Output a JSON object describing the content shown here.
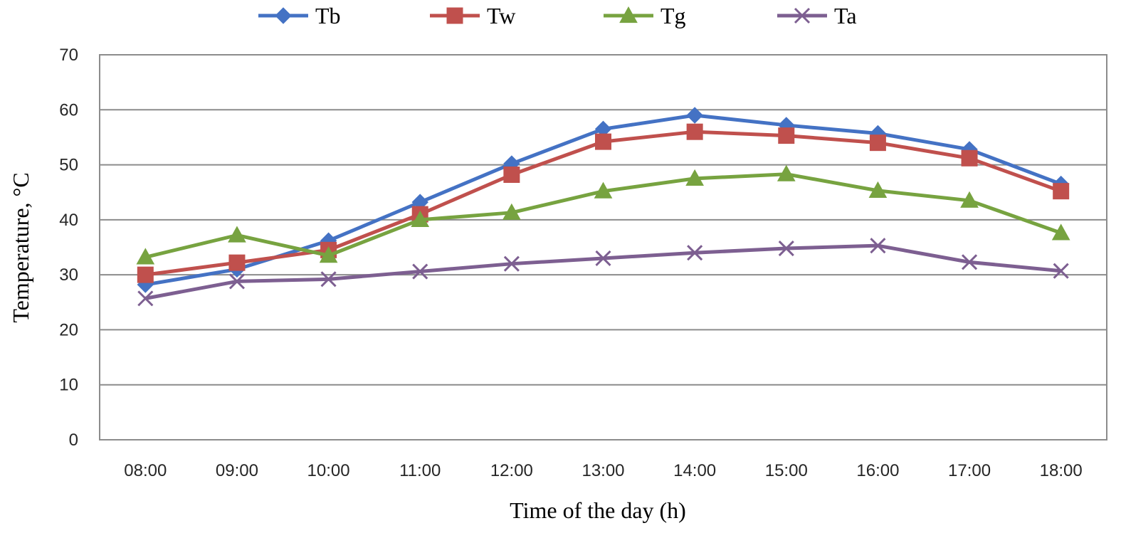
{
  "chart_data": {
    "type": "line",
    "xlabel": "Time of the day (h)",
    "ylabel": "Temperature, °C",
    "categories": [
      "08:00",
      "09:00",
      "10:00",
      "11:00",
      "12:00",
      "13:00",
      "14:00",
      "15:00",
      "16:00",
      "17:00",
      "18:00"
    ],
    "ylim": [
      0,
      70
    ],
    "yticks": [
      "0",
      "10",
      "20",
      "30",
      "40",
      "50",
      "60",
      "70"
    ],
    "grid": true,
    "legend_position": "top",
    "series": [
      {
        "name": "Tb",
        "color": "#4472C4",
        "marker": "diamond",
        "values": [
          28.2,
          31,
          36.2,
          43.2,
          50.2,
          56.5,
          59,
          57.2,
          55.7,
          52.8,
          46.5
        ]
      },
      {
        "name": "Tw",
        "color": "#C0504D",
        "marker": "square",
        "values": [
          30,
          32.2,
          34.5,
          41,
          48.2,
          54.2,
          56,
          55.3,
          54,
          51.2,
          45.2
        ]
      },
      {
        "name": "Tg",
        "color": "#77A340",
        "marker": "triangle",
        "values": [
          33.2,
          37.2,
          33.5,
          40,
          41.3,
          45.2,
          47.5,
          48.3,
          45.3,
          43.5,
          37.6
        ]
      },
      {
        "name": "Ta",
        "color": "#7D5F91",
        "marker": "x",
        "values": [
          25.7,
          28.8,
          29.2,
          30.6,
          32,
          33,
          34,
          34.8,
          35.3,
          32.3,
          30.7
        ]
      }
    ]
  }
}
